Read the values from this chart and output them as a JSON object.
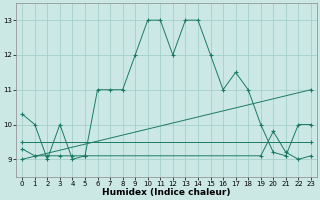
{
  "xlabel": "Humidex (Indice chaleur)",
  "xlim": [
    -0.5,
    23.5
  ],
  "ylim": [
    8.5,
    13.5
  ],
  "yticks": [
    9,
    10,
    11,
    12,
    13
  ],
  "xticks": [
    0,
    1,
    2,
    3,
    4,
    5,
    6,
    7,
    8,
    9,
    10,
    11,
    12,
    13,
    14,
    15,
    16,
    17,
    18,
    19,
    20,
    21,
    22,
    23
  ],
  "bg_color": "#cce8e4",
  "grid_color": "#9fccc7",
  "line_color": "#1a7a65",
  "series": [
    {
      "x": [
        0,
        1,
        2,
        3,
        4,
        5,
        6,
        7,
        8,
        9,
        10,
        11,
        12,
        13,
        14,
        15,
        16,
        17,
        18,
        19,
        20,
        21,
        22,
        23
      ],
      "y": [
        10.3,
        10.0,
        9.0,
        10.0,
        9.0,
        9.1,
        11.0,
        11.0,
        11.0,
        12.0,
        13.0,
        13.0,
        12.0,
        13.0,
        13.0,
        12.0,
        11.0,
        11.5,
        11.0,
        10.0,
        9.2,
        9.1,
        10.0,
        10.0
      ]
    },
    {
      "x": [
        0,
        23
      ],
      "y": [
        9.0,
        11.0
      ]
    },
    {
      "x": [
        0,
        23
      ],
      "y": [
        9.5,
        9.5
      ]
    },
    {
      "x": [
        0,
        1,
        2,
        3,
        4,
        5,
        19,
        20,
        21,
        22,
        23
      ],
      "y": [
        9.3,
        9.1,
        9.1,
        9.1,
        9.1,
        9.1,
        9.1,
        9.8,
        9.2,
        9.0,
        9.1
      ]
    }
  ]
}
